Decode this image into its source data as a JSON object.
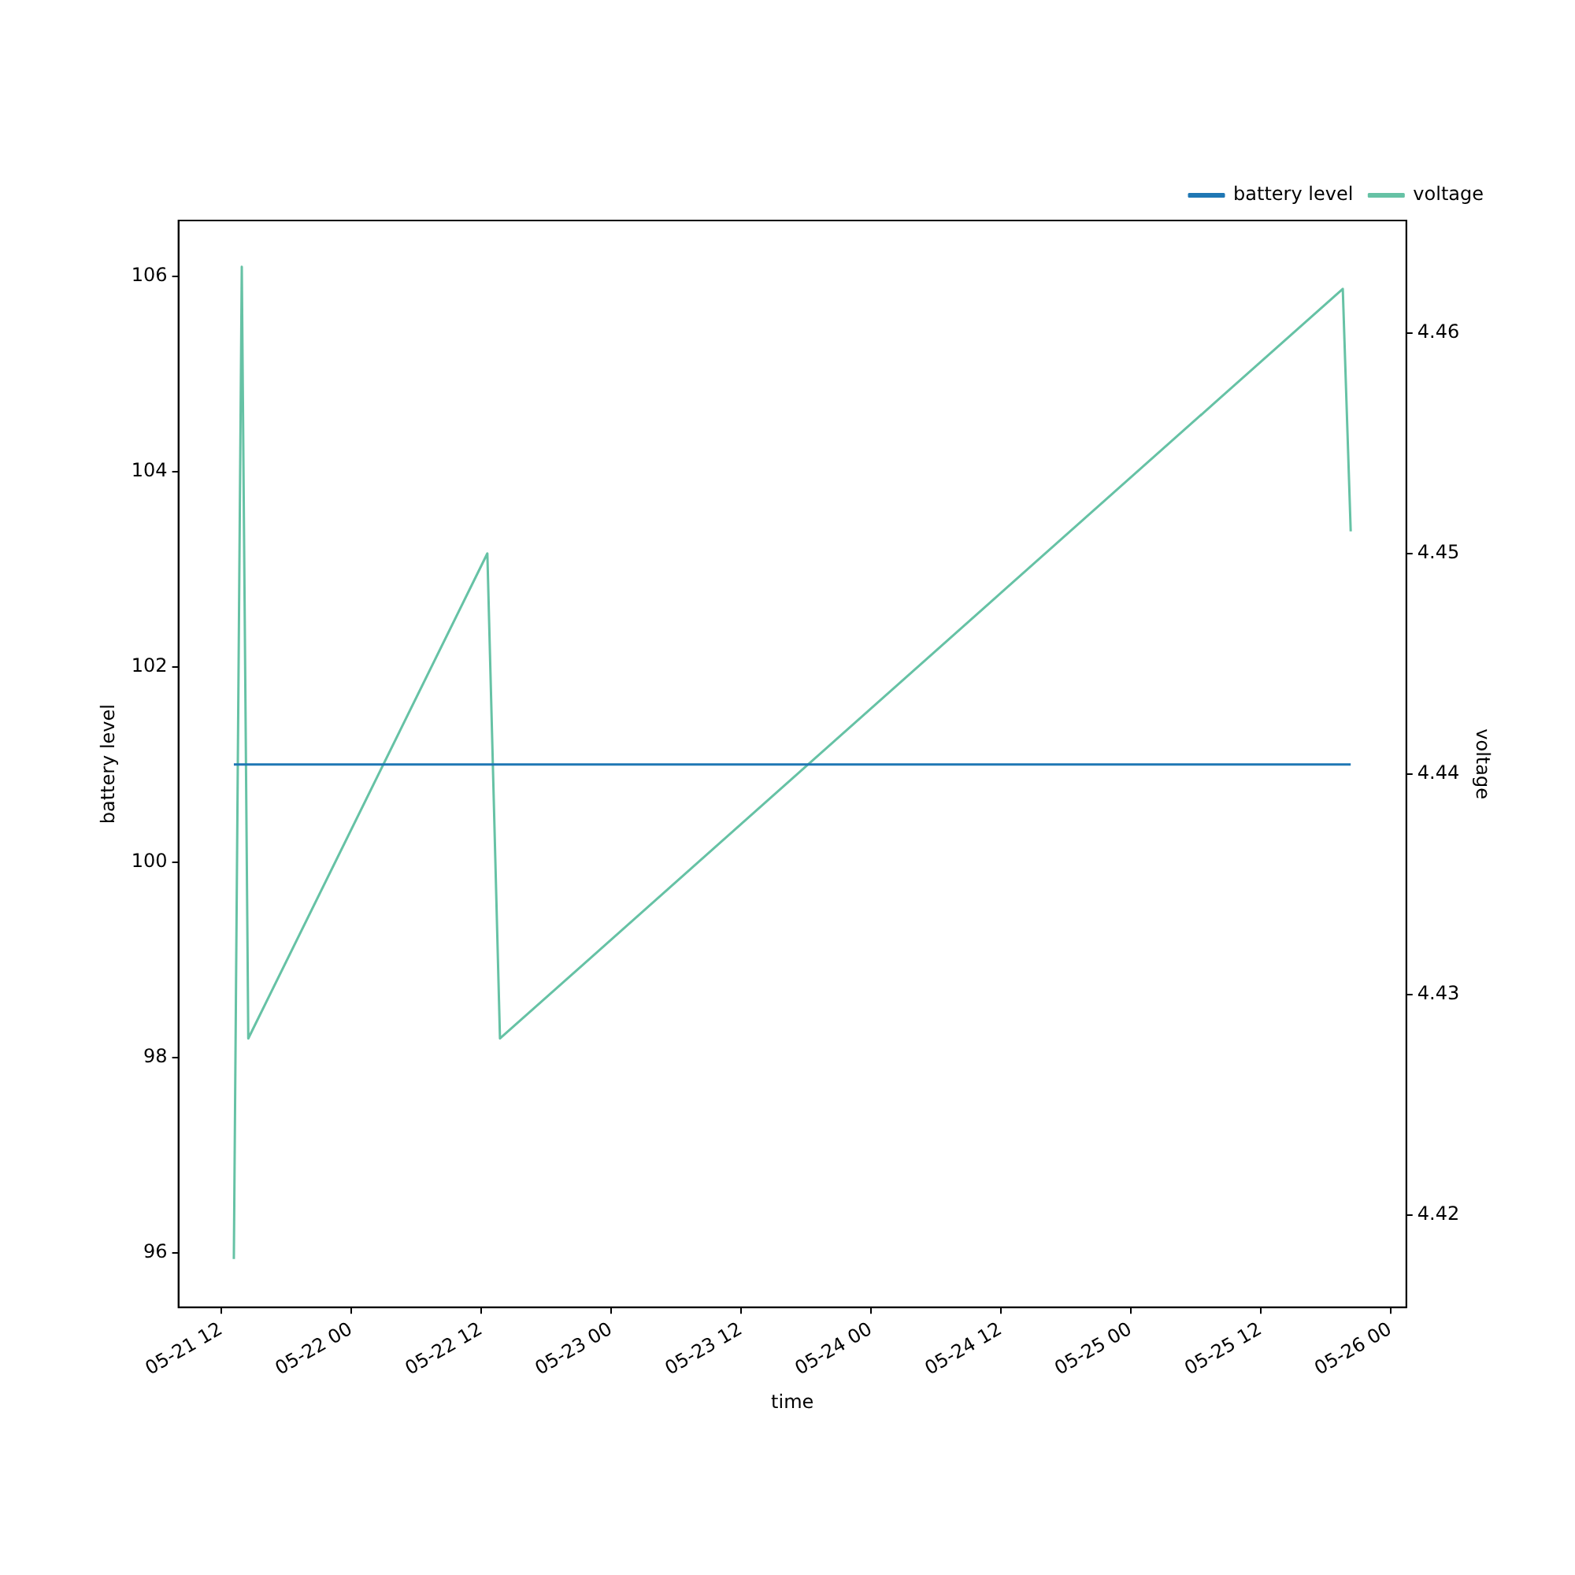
{
  "chart_data": {
    "type": "line",
    "xlabel": "time",
    "ylabel": "battery level",
    "y2label": "voltage",
    "series": [
      {
        "name": "battery level",
        "color": "#1f77b4",
        "x": [
          "--05-21T13:10",
          "--05-25T20:20"
        ],
        "values": [
          101,
          101
        ]
      },
      {
        "name": "voltage",
        "color": "#66c2a5",
        "axis": "y2",
        "x": [
          "--05-21T13:10",
          "--05-21T13:54",
          "--05-21T14:30",
          "--05-22T12:35",
          "--05-22T13:45",
          "--05-25T19:36",
          "--05-25T20:20"
        ],
        "values": [
          4.418,
          4.463,
          4.428,
          4.45,
          4.428,
          4.462,
          4.451
        ]
      }
    ],
    "xlim": [
      "--05-21T08:03",
      "--05-26T01:28"
    ],
    "xticks": [
      {
        "value": "--05-21T12:00",
        "label": "05-21 12"
      },
      {
        "value": "--05-22T00:00",
        "label": "05-22 00"
      },
      {
        "value": "--05-22T12:00",
        "label": "05-22 12"
      },
      {
        "value": "--05-23T00:00",
        "label": "05-23 00"
      },
      {
        "value": "--05-23T12:00",
        "label": "05-23 12"
      },
      {
        "value": "--05-24T00:00",
        "label": "05-24 00"
      },
      {
        "value": "--05-24T12:00",
        "label": "05-24 12"
      },
      {
        "value": "--05-25T00:00",
        "label": "05-25 00"
      },
      {
        "value": "--05-25T12:00",
        "label": "05-25 12"
      },
      {
        "value": "--05-26T00:00",
        "label": "05-26 00"
      }
    ],
    "ylim": [
      95.44,
      106.57
    ],
    "yticks": [
      96,
      98,
      100,
      102,
      104,
      106
    ],
    "y2lim": [
      4.4158,
      4.4651
    ],
    "y2ticks": [
      4.42,
      4.43,
      4.44,
      4.45,
      4.46
    ],
    "legend": "top right",
    "grid": false,
    "marker": "none",
    "line_style": "solid"
  }
}
